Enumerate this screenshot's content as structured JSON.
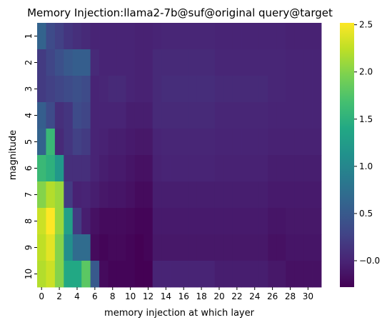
{
  "chart_data": {
    "type": "heatmap",
    "title": "Memory Injection:llama2-7b@suf@original query@target",
    "xlabel": "memory injection at which layer",
    "ylabel": "magnitude",
    "x_ticks": [
      "0",
      "2",
      "4",
      "6",
      "8",
      "10",
      "12",
      "14",
      "16",
      "18",
      "20",
      "22",
      "24",
      "26",
      "28",
      "30"
    ],
    "y_labels": [
      "1",
      "2",
      "3",
      "4",
      "5",
      "6",
      "7",
      "8",
      "9",
      "10"
    ],
    "colormap": "viridis",
    "value_range": [
      -0.28,
      2.52
    ],
    "colorbar_ticks": [
      -0.0,
      0.5,
      1.0,
      1.5,
      2.0,
      2.5
    ],
    "colorbar_tick_labels": [
      "−0.0",
      "0.5",
      "1.0",
      "1.5",
      "2.0",
      "2.5"
    ],
    "n_columns": 32,
    "values": [
      [
        0.6,
        0.35,
        0.25,
        0.15,
        0.1,
        0.05,
        0.0,
        0.0,
        0.0,
        0.0,
        0.0,
        -0.02,
        -0.02,
        0.0,
        0.02,
        0.02,
        0.02,
        0.02,
        0.02,
        0.02,
        0.0,
        0.0,
        0.0,
        0.0,
        0.0,
        0.0,
        0.0,
        0.0,
        -0.02,
        -0.02,
        -0.02,
        -0.02
      ],
      [
        0.2,
        0.3,
        0.4,
        0.5,
        0.55,
        0.55,
        0.05,
        0.0,
        0.0,
        0.0,
        0.0,
        -0.02,
        -0.02,
        0.05,
        0.05,
        0.05,
        0.05,
        0.05,
        0.05,
        0.05,
        0.02,
        0.02,
        0.02,
        0.02,
        0.02,
        0.02,
        0.02,
        0.02,
        0.0,
        0.0,
        0.0,
        0.0
      ],
      [
        0.2,
        0.25,
        0.3,
        0.35,
        0.4,
        0.35,
        0.0,
        0.02,
        0.05,
        0.05,
        0.0,
        -0.02,
        -0.02,
        0.05,
        0.08,
        0.08,
        0.08,
        0.08,
        0.08,
        0.08,
        0.05,
        0.05,
        0.05,
        0.05,
        0.05,
        0.05,
        0.02,
        0.02,
        0.0,
        0.0,
        0.0,
        0.0
      ],
      [
        0.55,
        0.35,
        0.1,
        0.15,
        0.35,
        0.3,
        0.0,
        0.0,
        0.0,
        0.0,
        -0.05,
        -0.05,
        -0.05,
        0.05,
        0.05,
        0.05,
        0.05,
        0.05,
        0.05,
        0.05,
        0.02,
        0.02,
        0.02,
        0.02,
        0.02,
        0.02,
        0.0,
        0.0,
        0.0,
        0.0,
        0.0,
        0.0
      ],
      [
        0.6,
        1.6,
        0.05,
        0.15,
        0.25,
        0.2,
        0.0,
        -0.02,
        -0.05,
        -0.05,
        -0.08,
        -0.1,
        -0.1,
        0.0,
        0.02,
        0.02,
        0.02,
        0.02,
        0.02,
        0.02,
        0.0,
        0.0,
        0.0,
        0.0,
        0.0,
        0.0,
        -0.02,
        -0.02,
        -0.02,
        -0.02,
        -0.02,
        -0.02
      ],
      [
        1.6,
        1.5,
        1.2,
        0.1,
        0.1,
        0.1,
        0.0,
        -0.05,
        -0.08,
        -0.08,
        -0.12,
        -0.15,
        -0.15,
        -0.02,
        0.0,
        0.0,
        0.0,
        0.0,
        0.0,
        0.0,
        -0.02,
        -0.02,
        -0.02,
        -0.02,
        -0.02,
        -0.02,
        -0.05,
        -0.05,
        -0.05,
        -0.05,
        -0.05,
        -0.05
      ],
      [
        2.0,
        2.2,
        2.1,
        0.2,
        -0.02,
        0.0,
        -0.05,
        -0.1,
        -0.12,
        -0.12,
        -0.15,
        -0.2,
        -0.2,
        -0.05,
        -0.05,
        -0.05,
        -0.05,
        -0.05,
        -0.05,
        -0.05,
        -0.05,
        -0.05,
        -0.05,
        -0.05,
        -0.05,
        -0.05,
        -0.08,
        -0.08,
        -0.08,
        -0.08,
        -0.08,
        -0.08
      ],
      [
        2.3,
        2.52,
        2.1,
        1.3,
        0.2,
        -0.05,
        -0.15,
        -0.2,
        -0.2,
        -0.2,
        -0.22,
        -0.25,
        -0.25,
        -0.08,
        -0.08,
        -0.08,
        -0.08,
        -0.08,
        -0.08,
        -0.08,
        -0.08,
        -0.08,
        -0.08,
        -0.08,
        -0.08,
        -0.08,
        -0.12,
        -0.12,
        -0.1,
        -0.1,
        -0.1,
        -0.1
      ],
      [
        2.25,
        2.4,
        2.0,
        1.1,
        0.7,
        0.7,
        -0.2,
        -0.25,
        -0.22,
        -0.22,
        -0.25,
        -0.28,
        -0.25,
        -0.1,
        -0.1,
        -0.1,
        -0.1,
        -0.1,
        -0.1,
        -0.1,
        -0.1,
        -0.1,
        -0.1,
        -0.1,
        -0.1,
        -0.1,
        -0.15,
        -0.15,
        -0.12,
        -0.12,
        -0.12,
        -0.12
      ],
      [
        2.2,
        2.3,
        2.0,
        1.4,
        1.4,
        1.8,
        0.5,
        -0.2,
        -0.25,
        -0.25,
        -0.25,
        -0.28,
        -0.28,
        0.0,
        0.0,
        0.0,
        0.0,
        0.0,
        0.0,
        0.0,
        -0.05,
        -0.05,
        -0.05,
        -0.05,
        -0.05,
        -0.05,
        -0.1,
        -0.1,
        -0.15,
        -0.15,
        -0.15,
        -0.15
      ]
    ]
  }
}
